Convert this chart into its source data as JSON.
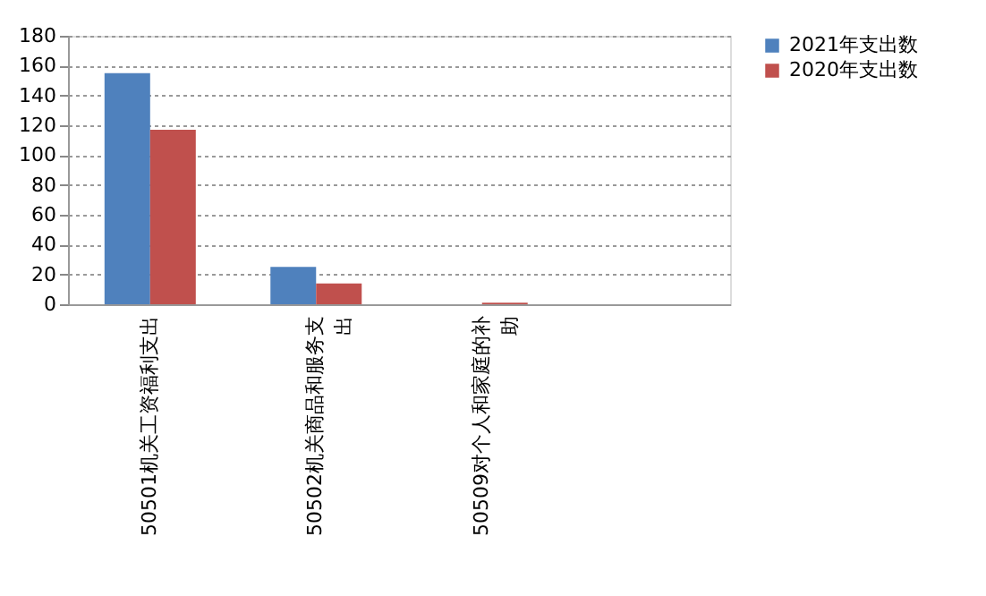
{
  "chart_data": {
    "type": "bar",
    "categories": [
      "50501机关工资福利支出",
      "50502机关商品和服务支出",
      "50509对个人和家庭的补助",
      null
    ],
    "series": [
      {
        "name": "2021年支出数",
        "color": "#4f81bd",
        "values": [
          155,
          25,
          null,
          null
        ]
      },
      {
        "name": "2020年支出数",
        "color": "#c0504d",
        "values": [
          117,
          14,
          1,
          null
        ]
      }
    ],
    "ylim": [
      0,
      180
    ],
    "yticks": [
      0,
      20,
      40,
      60,
      80,
      100,
      120,
      140,
      160,
      180
    ],
    "grid": "y",
    "legend": "right"
  }
}
